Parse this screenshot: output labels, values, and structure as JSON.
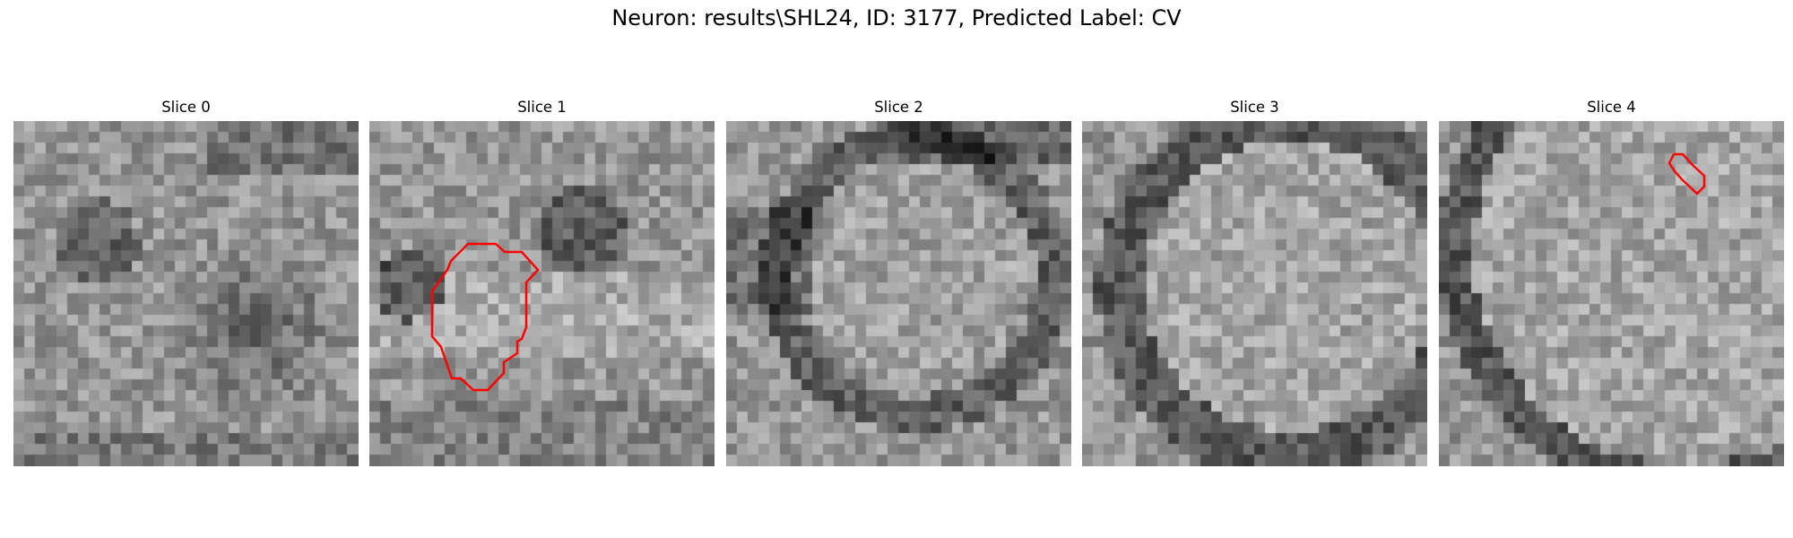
{
  "figure": {
    "suptitle": "Neuron: results\\SHL24, ID: 3177, Predicted Label: CV"
  },
  "slices": [
    {
      "title": "Slice 0",
      "has_contour": false
    },
    {
      "title": "Slice 1",
      "has_contour": true,
      "contour_color": "#ff0000"
    },
    {
      "title": "Slice 2",
      "has_contour": false
    },
    {
      "title": "Slice 3",
      "has_contour": false
    },
    {
      "title": "Slice 4",
      "has_contour": true,
      "contour_color": "#ff0000"
    }
  ],
  "colormap": "gray"
}
